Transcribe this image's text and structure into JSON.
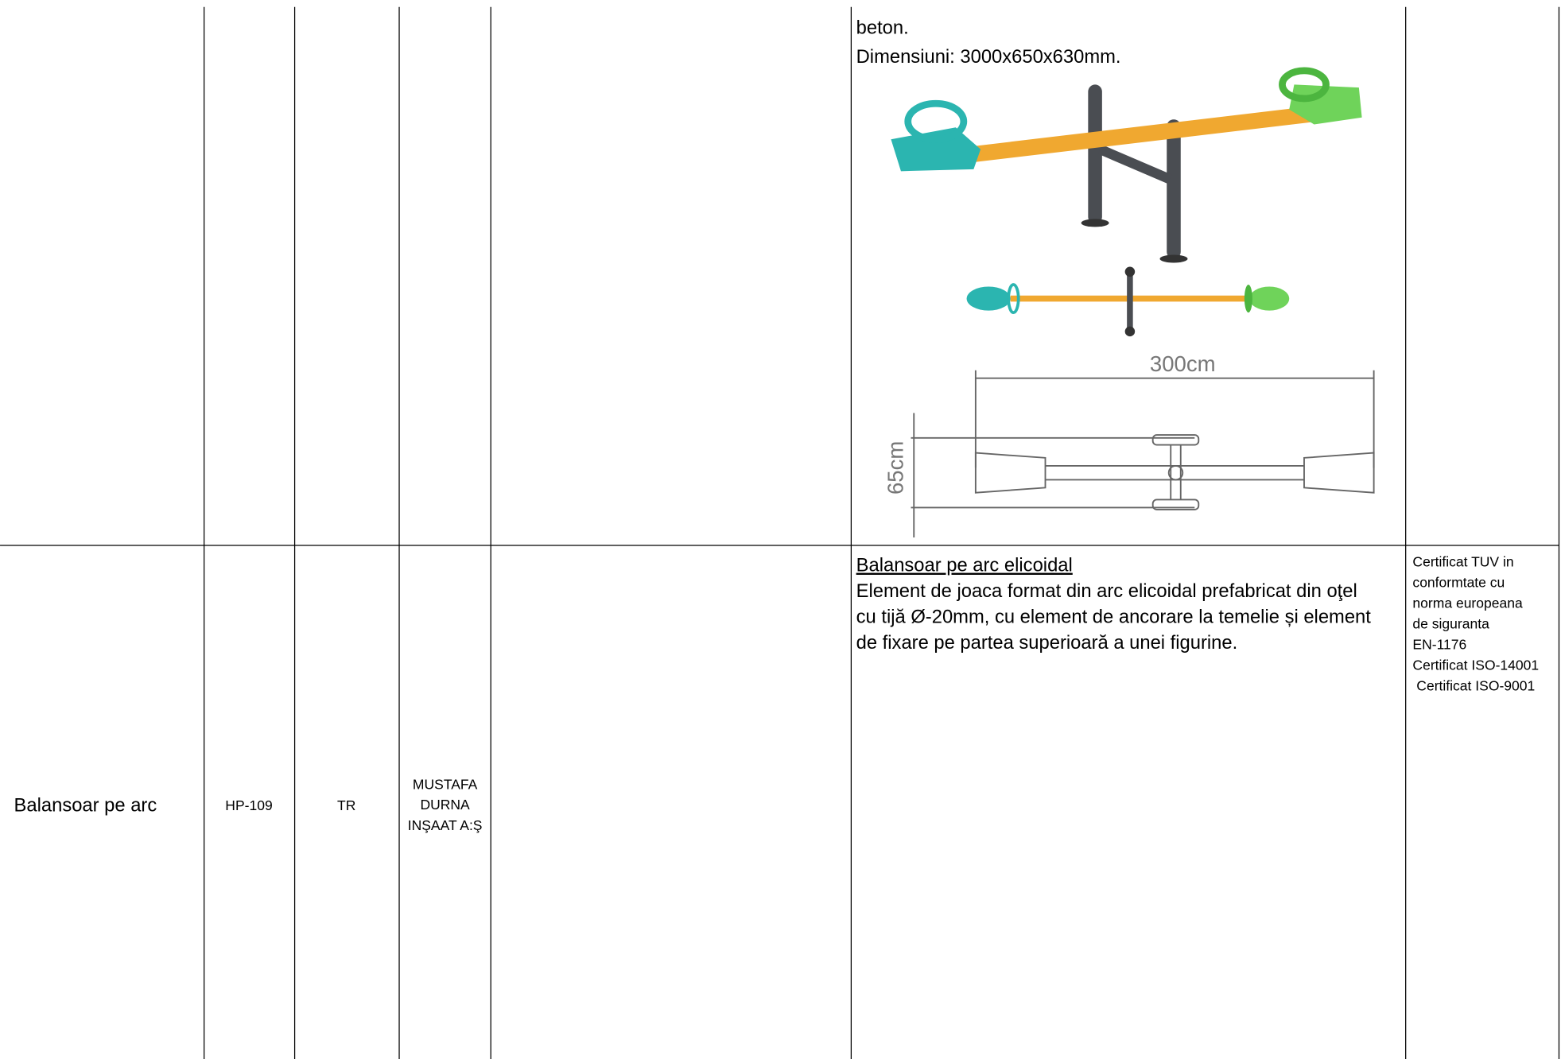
{
  "table": {
    "rows": [
      {
        "description": [
          "beton.",
          "Dimensiuni: 3000x650x630mm."
        ],
        "image_labels": [
          "300cm",
          "65cm"
        ]
      },
      {
        "name": "Balansoar pe arc",
        "code": "HP-109",
        "origin": "TR",
        "producer": [
          "MUSTAFA",
          "DURNA",
          "INŞAAT A:Ş"
        ],
        "description_title": "Balansoar pe arc elicoidal",
        "description": [
          "Element de joaca format din arc elicoidal prefabricat din oţel",
          "cu tijă Ø-20mm, cu element de ancorare la temelie și element",
          "de fixare pe partea superioară a unei figurine."
        ],
        "certificates": [
          "Certificat TUV in",
          "conformtate cu",
          "norma europeana",
          "de siguranta",
          "EN-1176",
          "Certificat ISO-14001",
          " Certificat ISO-9001"
        ]
      }
    ]
  }
}
